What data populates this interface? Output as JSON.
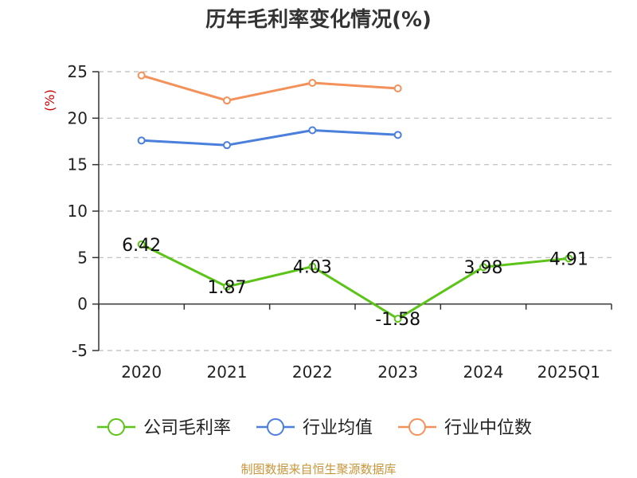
{
  "title": "历年毛利率变化情况(%)",
  "footer": "制图数据来自恒生聚源数据库",
  "chart_data": {
    "type": "line",
    "title": "历年毛利率变化情况(%)",
    "ylabel": "(%)",
    "xlabel": "",
    "categories": [
      "2020",
      "2021",
      "2022",
      "2023",
      "2024",
      "2025Q1"
    ],
    "ylim": [
      -5,
      25
    ],
    "yticks": [
      -5,
      0,
      5,
      10,
      15,
      20,
      25
    ],
    "grid": "horizontal-dashed",
    "legend_position": "bottom",
    "series": [
      {
        "name": "公司毛利率",
        "color": "#5cc418",
        "values": [
          6.42,
          1.87,
          4.03,
          -1.58,
          3.98,
          4.91
        ],
        "labels": [
          "6.42",
          "1.87",
          "4.03",
          "-1.58",
          "3.98",
          "4.91"
        ],
        "show_labels": true
      },
      {
        "name": "行业均值",
        "color": "#4a7fdc",
        "values": [
          17.6,
          17.1,
          18.7,
          18.2,
          null,
          null
        ],
        "show_labels": false
      },
      {
        "name": "行业中位数",
        "color": "#f4915a",
        "values": [
          24.6,
          21.9,
          23.8,
          23.2,
          null,
          null
        ],
        "show_labels": false
      }
    ]
  }
}
